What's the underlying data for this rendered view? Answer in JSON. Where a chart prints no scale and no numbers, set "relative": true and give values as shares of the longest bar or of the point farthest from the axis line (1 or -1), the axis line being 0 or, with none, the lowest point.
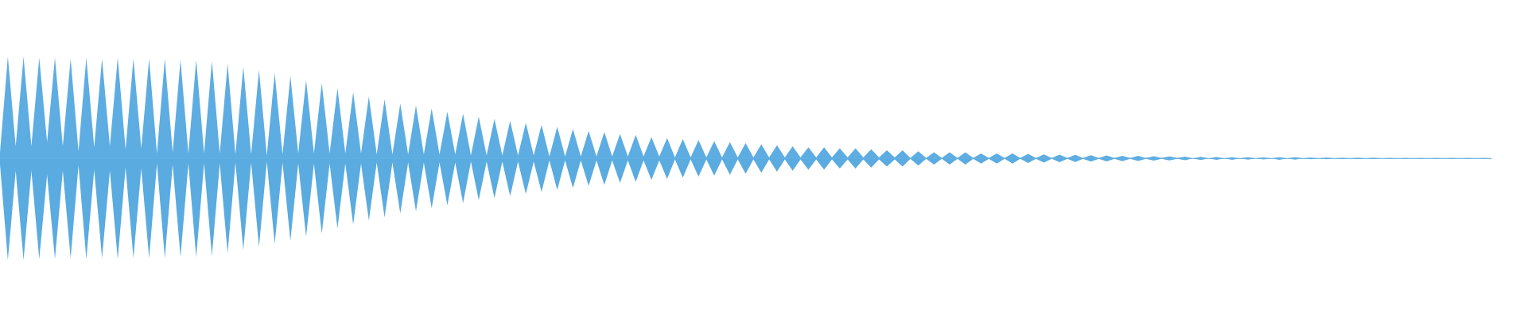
{
  "chart_data": {
    "type": "area",
    "relative": true,
    "categories": [
      null,
      null,
      null,
      null,
      null,
      null,
      null,
      null,
      null,
      null,
      null,
      null,
      null,
      null,
      null,
      null,
      null,
      null,
      null,
      null,
      null,
      null,
      null,
      null,
      null,
      null,
      null,
      null,
      null,
      null,
      null,
      null,
      null,
      null,
      null,
      null,
      null,
      null,
      null,
      null,
      null,
      null,
      null,
      null,
      null,
      null,
      null,
      null,
      null,
      null,
      null,
      null,
      null,
      null,
      null,
      null,
      null,
      null,
      null,
      null,
      null,
      null,
      null,
      null,
      null,
      null,
      null,
      null,
      null,
      null,
      null,
      null,
      null,
      null,
      null,
      null,
      null,
      null,
      null,
      null,
      null,
      null,
      null,
      null,
      null,
      null,
      null,
      null,
      null,
      null,
      null,
      null,
      null,
      null,
      null,
      null,
      null,
      null,
      null,
      null,
      null,
      null,
      null,
      null,
      null,
      null,
      null,
      null,
      null,
      null,
      null,
      null,
      null,
      null,
      null,
      null,
      null,
      null,
      null,
      null,
      null,
      null,
      null,
      null,
      null,
      null,
      null,
      null,
      null,
      null,
      null,
      null,
      null,
      null,
      null,
      null,
      null,
      null,
      null,
      null,
      null,
      null,
      null,
      null,
      null,
      null,
      null,
      null,
      null,
      null,
      null,
      null,
      null,
      null,
      null,
      null,
      null,
      null,
      null,
      null,
      null,
      null,
      null,
      null,
      null,
      null,
      null,
      null,
      null,
      null,
      null,
      null,
      null,
      null,
      null,
      null,
      null,
      null,
      null,
      null,
      null,
      null,
      null,
      null,
      null,
      null,
      null,
      null,
      null,
      null,
      null
    ],
    "series": [
      {
        "color": "#5dade2",
        "values": [
          0.06,
          1.0,
          0.12,
          1.0,
          0.12,
          0.99,
          0.16,
          0.99,
          0.12,
          0.98,
          0.07,
          0.99,
          0.11,
          0.98,
          0.12,
          0.99,
          0.09,
          0.98,
          0.1,
          0.98,
          0.05,
          0.98,
          0.06,
          0.97,
          0.05,
          0.97,
          0.05,
          0.96,
          0.05,
          0.93,
          0.04,
          0.9,
          0.04,
          0.87,
          0.03,
          0.84,
          0.04,
          0.81,
          0.05,
          0.77,
          0.05,
          0.74,
          0.05,
          0.69,
          0.05,
          0.65,
          0.05,
          0.61,
          0.04,
          0.58,
          0.04,
          0.54,
          0.04,
          0.52,
          0.04,
          0.49,
          0.04,
          0.46,
          0.04,
          0.44,
          0.03,
          0.41,
          0.03,
          0.39,
          0.03,
          0.37,
          0.03,
          0.35,
          0.03,
          0.33,
          0.02,
          0.31,
          0.02,
          0.29,
          0.02,
          0.27,
          0.02,
          0.26,
          0.02,
          0.24,
          0.02,
          0.23,
          0.02,
          0.21,
          0.02,
          0.2,
          0.01,
          0.19,
          0.01,
          0.18,
          0.01,
          0.17,
          0.01,
          0.16,
          0.01,
          0.15,
          0.01,
          0.14,
          0.01,
          0.13,
          0.01,
          0.12,
          0.01,
          0.11,
          0.01,
          0.11,
          0.01,
          0.1,
          0.01,
          0.1,
          0.01,
          0.09,
          0.01,
          0.08,
          0.01,
          0.08,
          0.004,
          0.07,
          0.004,
          0.06,
          0.004,
          0.06,
          0.004,
          0.06,
          0.004,
          0.05,
          0.004,
          0.05,
          0.004,
          0.05,
          0.004,
          0.045,
          0.004,
          0.04,
          0.004,
          0.037,
          0.004,
          0.035,
          0.004,
          0.031,
          0.004,
          0.029,
          0.004,
          0.026,
          0.004,
          0.025,
          0.004,
          0.021,
          0.004,
          0.02,
          0.004,
          0.018,
          0,
          0.016,
          0,
          0.014,
          0,
          0.013,
          0,
          0.012,
          0,
          0.01,
          0,
          0.013,
          0,
          0.012,
          0,
          0.008,
          0,
          0.008,
          0,
          0.006,
          0,
          0.006,
          0,
          0.006,
          0,
          0.004,
          0,
          0.004,
          0,
          0.004,
          0,
          0.004,
          0,
          0.004,
          0,
          0.004,
          0,
          0.004,
          0
        ]
      },
      {
        "color": "#5aabe0",
        "values": [
          -0.06,
          -1.0,
          -0.12,
          -1.0,
          -0.12,
          -0.99,
          -0.16,
          -0.99,
          -0.12,
          -0.98,
          -0.07,
          -0.99,
          -0.11,
          -0.98,
          -0.12,
          -0.99,
          -0.09,
          -0.98,
          -0.1,
          -0.98,
          -0.05,
          -0.98,
          -0.06,
          -0.97,
          -0.05,
          -0.97,
          -0.05,
          -0.96,
          -0.05,
          -0.93,
          -0.04,
          -0.9,
          -0.04,
          -0.87,
          -0.03,
          -0.84,
          -0.04,
          -0.81,
          -0.05,
          -0.77,
          -0.05,
          -0.74,
          -0.05,
          -0.69,
          -0.05,
          -0.65,
          -0.05,
          -0.61,
          -0.04,
          -0.58,
          -0.04,
          -0.54,
          -0.04,
          -0.52,
          -0.04,
          -0.49,
          -0.04,
          -0.46,
          -0.04,
          -0.44,
          -0.03,
          -0.41,
          -0.03,
          -0.39,
          -0.03,
          -0.37,
          -0.03,
          -0.35,
          -0.03,
          -0.33,
          -0.02,
          -0.31,
          -0.02,
          -0.29,
          -0.02,
          -0.27,
          -0.02,
          -0.26,
          -0.02,
          -0.24,
          -0.02,
          -0.23,
          -0.02,
          -0.21,
          -0.02,
          -0.2,
          -0.01,
          -0.19,
          -0.01,
          -0.18,
          -0.01,
          -0.17,
          -0.01,
          -0.16,
          -0.01,
          -0.15,
          -0.01,
          -0.14,
          -0.01,
          -0.13,
          -0.01,
          -0.12,
          -0.01,
          -0.11,
          -0.01,
          -0.11,
          -0.01,
          -0.1,
          -0.01,
          -0.1,
          -0.01,
          -0.09,
          -0.01,
          -0.08,
          -0.01,
          -0.08,
          -0.004,
          -0.07,
          -0.004,
          -0.06,
          -0.004,
          -0.06,
          -0.004,
          -0.06,
          -0.004,
          -0.05,
          -0.004,
          -0.05,
          -0.004,
          -0.05,
          -0.004,
          -0.045,
          -0.004,
          -0.04,
          -0.004,
          -0.037,
          -0.004,
          -0.035,
          -0.004,
          -0.031,
          -0.004,
          -0.029,
          -0.004,
          -0.026,
          -0.004,
          -0.025,
          -0.004,
          -0.021,
          -0.004,
          -0.02,
          -0.004,
          -0.018,
          0,
          -0.016,
          0,
          -0.014,
          0,
          -0.013,
          0,
          -0.012,
          0,
          -0.01,
          0,
          -0.013,
          0,
          -0.012,
          0,
          -0.008,
          0,
          -0.008,
          0,
          -0.006,
          0,
          -0.006,
          0,
          -0.006,
          0,
          -0.004,
          0,
          -0.004,
          0,
          -0.004,
          0,
          -0.004,
          0,
          -0.004,
          0,
          -0.004,
          0,
          -0.004,
          0
        ]
      }
    ]
  }
}
